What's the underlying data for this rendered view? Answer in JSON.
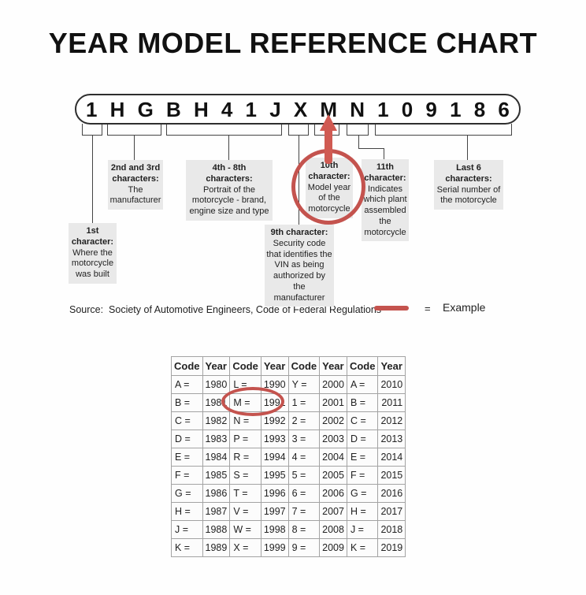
{
  "title": "YEAR MODEL REFERENCE CHART",
  "vin": {
    "chars": [
      "1",
      "H",
      "G",
      "B",
      "H",
      "4",
      "1",
      "J",
      "X",
      "M",
      "N",
      "1",
      "0",
      "9",
      "1",
      "8",
      "6"
    ]
  },
  "callouts": {
    "first": {
      "title": "1st\ncharacter:",
      "body": "Where the\nmotorcycle\nwas built"
    },
    "second_third": {
      "title": "2nd and 3rd\ncharacters:",
      "body": "The\nmanufacturer"
    },
    "fourth_eighth": {
      "title": "4th - 8th\ncharacters:",
      "body": "Portrait of the\nmotorcycle - brand,\nengine size and type"
    },
    "ninth": {
      "title": "9th character:",
      "body": "Security code\nthat identifies the\nVIN as being\nauthorized by the\nmanufacturer"
    },
    "tenth": {
      "title": "10th\ncharacter:",
      "body": "Model year\nof the\nmotorcycle"
    },
    "eleventh": {
      "title": "11th\ncharacter:",
      "body": "Indicates\nwhich plant\nassembled\nthe\nmotorcycle"
    },
    "last_six": {
      "title": "Last 6\ncharacters:",
      "body": "Serial number of\nthe motorcycle"
    }
  },
  "source": {
    "text": "Source:  Society of Automotive Engineers, Code of Federal Regulations",
    "equals": "=",
    "example_label": "Example"
  },
  "colors": {
    "highlight_red": "#c4534e",
    "arrow_red": "#d05a52",
    "callout_gray": "#e9e9e9"
  },
  "table": {
    "headers": [
      "Code",
      "Year",
      "Code",
      "Year",
      "Code",
      "Year",
      "Code",
      "Year"
    ],
    "rows": [
      [
        "A =",
        "1980",
        "L =",
        "1990",
        "Y =",
        "2000",
        "A =",
        "2010"
      ],
      [
        "B =",
        "1981",
        "M =",
        "1991",
        "1 =",
        "2001",
        "B =",
        "2011"
      ],
      [
        "C =",
        "1982",
        "N =",
        "1992",
        "2 =",
        "2002",
        "C =",
        "2012"
      ],
      [
        "D =",
        "1983",
        "P =",
        "1993",
        "3 =",
        "2003",
        "D =",
        "2013"
      ],
      [
        "E =",
        "1984",
        "R =",
        "1994",
        "4 =",
        "2004",
        "E =",
        "2014"
      ],
      [
        "F =",
        "1985",
        "S =",
        "1995",
        "5 =",
        "2005",
        "F =",
        "2015"
      ],
      [
        "G =",
        "1986",
        "T =",
        "1996",
        "6 =",
        "2006",
        "G =",
        "2016"
      ],
      [
        "H =",
        "1987",
        "V =",
        "1997",
        "7 =",
        "2007",
        "H =",
        "2017"
      ],
      [
        "J =",
        "1988",
        "W =",
        "1998",
        "8 =",
        "2008",
        "J =",
        "2018"
      ],
      [
        "K =",
        "1989",
        "X =",
        "1999",
        "9 =",
        "2009",
        "K =",
        "2019"
      ]
    ],
    "highlighted_entry": "M = 1991"
  }
}
